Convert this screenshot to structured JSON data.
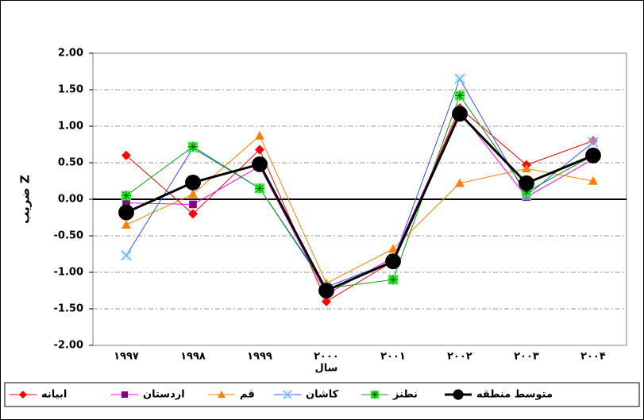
{
  "chart_data": {
    "type": "line",
    "x_label": "سال",
    "y_label": "ضریب Z",
    "categories": [
      "۱۹۹۷",
      "۱۹۹۸",
      "۱۹۹۹",
      "۲۰۰۰",
      "۲۰۰۱",
      "۲۰۰۲",
      "۲۰۰۳",
      "۲۰۰۴"
    ],
    "series": [
      {
        "name": "ابیانه",
        "color": "#ff0000",
        "marker": "diamond",
        "values": [
          0.6,
          -0.2,
          0.68,
          -1.4,
          -0.85,
          1.25,
          0.47,
          0.8
        ]
      },
      {
        "name": "اردستان",
        "color": "#ff00ff",
        "marker": "square",
        "values": [
          -0.05,
          -0.07,
          0.45,
          -1.3,
          -0.8,
          1.2,
          0.03,
          0.55
        ]
      },
      {
        "name": "قم",
        "color": "#ff8000",
        "marker": "triangle",
        "values": [
          -0.35,
          0.07,
          0.87,
          -1.15,
          -0.68,
          0.22,
          0.42,
          0.25
        ]
      },
      {
        "name": "کاشان",
        "color": "#3050ff",
        "marker": "x",
        "values": [
          -0.77,
          0.7,
          0.15,
          -1.2,
          -0.85,
          1.65,
          0.05,
          0.78
        ]
      },
      {
        "name": "نطنز",
        "color": "#00a000",
        "marker": "star-square",
        "values": [
          0.05,
          0.72,
          0.15,
          -1.22,
          -1.1,
          1.42,
          0.1,
          0.6
        ]
      },
      {
        "name": "متوسط منطقه",
        "color": "#000000",
        "marker": "circle",
        "values": [
          -0.18,
          0.23,
          0.48,
          -1.25,
          -0.85,
          1.17,
          0.22,
          0.6
        ]
      }
    ],
    "ylim": [
      -2,
      2
    ],
    "yticks": [
      {
        "value": -2,
        "label": "-2.00"
      },
      {
        "value": -1.5,
        "label": "-1.50"
      },
      {
        "value": -1,
        "label": "-1.00"
      },
      {
        "value": -0.5,
        "label": "-0.50"
      },
      {
        "value": 0,
        "label": "0.00"
      },
      {
        "value": 0.5,
        "label": "0.50"
      },
      {
        "value": 1,
        "label": "1.00"
      },
      {
        "value": 1.5,
        "label": "1.50"
      },
      {
        "value": 2,
        "label": "2.00"
      }
    ],
    "grid": true,
    "legend": "bottom"
  }
}
